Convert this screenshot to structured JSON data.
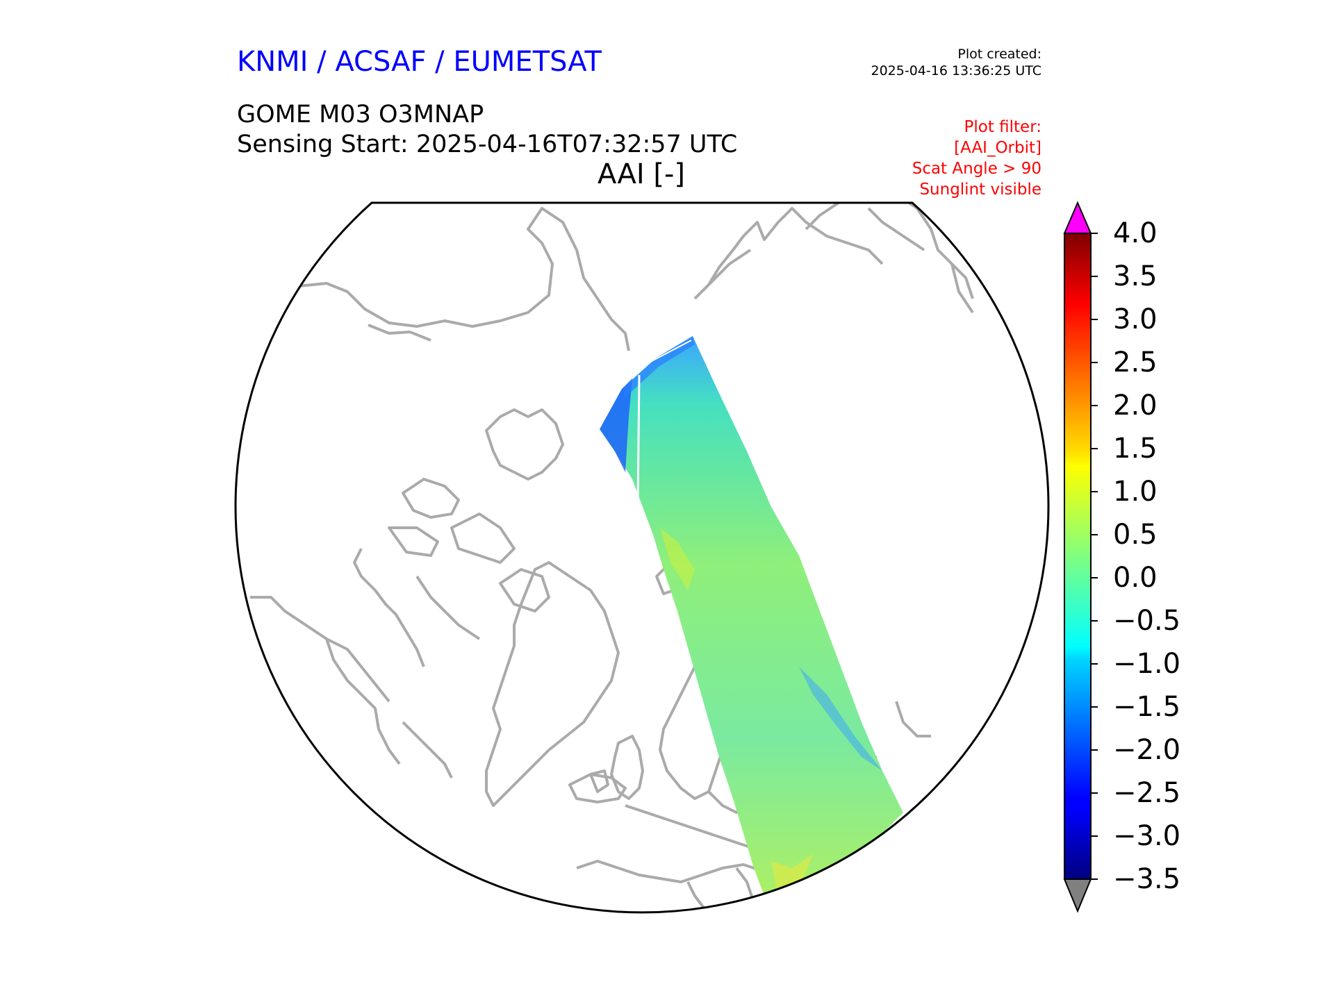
{
  "header": {
    "organization": "KNMI / ACSAF / EUMETSAT",
    "plot_created_label": "Plot created:",
    "plot_created_time": "2025-04-16 13:36:25 UTC",
    "product": "GOME M03 O3MNAP",
    "sensing_start": "Sensing Start: 2025-04-16T07:32:57 UTC",
    "variable": "AAI [-]"
  },
  "filters": {
    "label": "Plot filter:",
    "items": [
      "[AAI_Orbit]",
      "Scat Angle > 90",
      "Sunglint visible"
    ]
  },
  "colorbar": {
    "ticks": [
      "4.0",
      "3.5",
      "3.0",
      "2.5",
      "2.0",
      "1.5",
      "1.0",
      "0.5",
      "0.0",
      "−0.5",
      "−1.0",
      "−1.5",
      "−2.0",
      "−2.5",
      "−3.0",
      "−3.5"
    ],
    "min": -3.5,
    "max": 4.0,
    "over_color": "#ff00ff",
    "under_color": "#808080",
    "colormap": "jet"
  },
  "colors": {
    "title": "#0000ff",
    "filter": "#ff0000",
    "coastline": "#aaaaaa"
  }
}
